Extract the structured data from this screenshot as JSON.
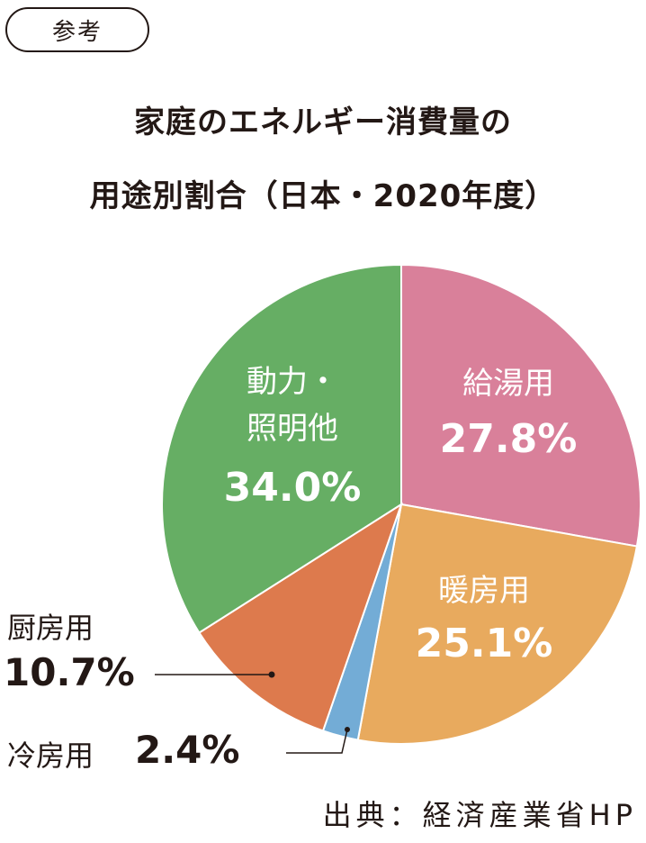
{
  "badge": "参考",
  "title_lines": [
    "家庭のエネルギー消費量の",
    "用途別割合（日本・2020年度）"
  ],
  "source": "出典：経済産業省HP",
  "chart_data": {
    "type": "pie",
    "title": "家庭のエネルギー消費量の用途別割合（日本・2020年度）",
    "slices": [
      {
        "id": "kyuto",
        "name": "給湯用",
        "value": 27.8,
        "label": "27.8%",
        "color": "#d9809a"
      },
      {
        "id": "danbo",
        "name": "暖房用",
        "value": 25.1,
        "label": "25.1%",
        "color": "#e8aa5e"
      },
      {
        "id": "reibo",
        "name": "冷房用",
        "value": 2.4,
        "label": "2.4%",
        "color": "#73acd6"
      },
      {
        "id": "chubo",
        "name": "厨房用",
        "value": 10.7,
        "label": "10.7%",
        "color": "#dd7a4d"
      },
      {
        "id": "doryoku",
        "name": "動力・照明他",
        "name_lines": [
          "動力・",
          "照明他"
        ],
        "value": 34.0,
        "label": "34.0%",
        "color": "#66ae64"
      }
    ]
  }
}
